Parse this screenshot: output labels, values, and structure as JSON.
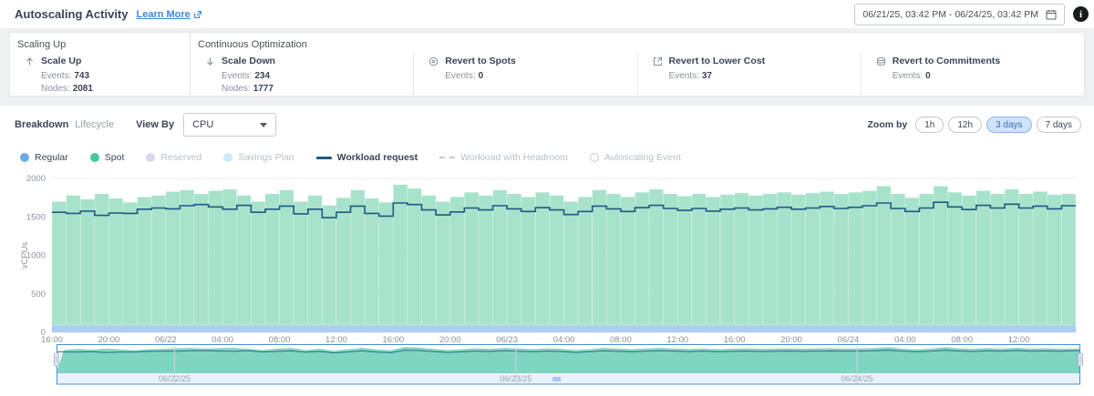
{
  "header": {
    "title": "Autoscaling Activity",
    "learn_more": "Learn More",
    "date_range": "06/21/25, 03:42 PM - 06/24/25, 03:42 PM"
  },
  "summary": {
    "groups": [
      {
        "label": "Scaling Up"
      },
      {
        "label": "Continuous Optimization"
      }
    ],
    "cards": [
      {
        "title": "Scale Up",
        "events_label": "Events:",
        "events": "743",
        "nodes_label": "Nodes:",
        "nodes": "2081"
      },
      {
        "title": "Scale Down",
        "events_label": "Events:",
        "events": "234",
        "nodes_label": "Nodes:",
        "nodes": "1777"
      },
      {
        "title": "Revert to Spots",
        "events_label": "Events:",
        "events": "0"
      },
      {
        "title": "Revert to Lower Cost",
        "events_label": "Events:",
        "events": "37"
      },
      {
        "title": "Revert to Commitments",
        "events_label": "Events:",
        "events": "0"
      }
    ]
  },
  "controls": {
    "tabs": [
      {
        "label": "Breakdown",
        "active": true
      },
      {
        "label": "Lifecycle",
        "active": false
      }
    ],
    "view_by_label": "View By",
    "view_by_value": "CPU",
    "zoom_by_label": "Zoom by",
    "zoom_options": [
      {
        "label": "1h",
        "active": false
      },
      {
        "label": "12h",
        "active": false
      },
      {
        "label": "3 days",
        "active": true
      },
      {
        "label": "7 days",
        "active": false
      }
    ]
  },
  "legend": {
    "items": [
      {
        "label": "Regular",
        "swatch": "dot",
        "color": "#6aa9e9",
        "active": true,
        "bold": false
      },
      {
        "label": "Spot",
        "swatch": "dot",
        "color": "#47c79c",
        "active": true,
        "bold": false
      },
      {
        "label": "Reserved",
        "swatch": "dot",
        "color": "#d9d6f0",
        "active": false,
        "bold": false
      },
      {
        "label": "Savings Plan",
        "swatch": "dot",
        "color": "#cdeaf6",
        "active": false,
        "bold": false
      },
      {
        "label": "Workload request",
        "swatch": "line",
        "color": "#1e5a84",
        "active": true,
        "bold": true
      },
      {
        "label": "Workload with Headroom",
        "swatch": "dashed-line",
        "color": "#c3c9d0",
        "active": false,
        "bold": false
      },
      {
        "label": "Autoscaling Event",
        "swatch": "hollow-dot",
        "color": "#c3c9d0",
        "active": false,
        "bold": false
      }
    ]
  },
  "chart_data": {
    "type": "area",
    "title": "Autoscaling activity over time (stacked step area of provisioned vCPUs by lifecycle, with workload request step line)",
    "y_label": "vCPUs",
    "ylim": [
      0,
      2000
    ],
    "y_ticks": [
      0,
      500,
      1000,
      1500,
      2000
    ],
    "total_hours": 72,
    "x_ticks": {
      "hours": [
        0,
        4,
        8,
        12,
        16,
        20,
        24,
        28,
        32,
        36,
        40,
        44,
        48,
        52,
        56,
        60,
        64,
        68
      ],
      "labels": [
        "16:00",
        "20:00",
        "06/22",
        "04:00",
        "08:00",
        "12:00",
        "16:00",
        "20:00",
        "06/23",
        "04:00",
        "08:00",
        "12:00",
        "16:00",
        "20:00",
        "06/24",
        "04:00",
        "08:00",
        "12:00"
      ]
    },
    "series": [
      {
        "name": "Regular",
        "type": "area",
        "color": "#abcdf4",
        "constant": 95
      },
      {
        "name": "Spot",
        "type": "area",
        "stacked_top": true,
        "color": "#a6e3ca",
        "values": [
          1700,
          1780,
          1730,
          1800,
          1740,
          1690,
          1760,
          1780,
          1830,
          1850,
          1800,
          1840,
          1860,
          1780,
          1700,
          1800,
          1850,
          1700,
          1780,
          1650,
          1750,
          1850,
          1740,
          1690,
          1920,
          1870,
          1780,
          1700,
          1760,
          1820,
          1780,
          1850,
          1800,
          1760,
          1820,
          1780,
          1700,
          1760,
          1850,
          1800,
          1760,
          1820,
          1860,
          1800,
          1770,
          1800,
          1760,
          1790,
          1810,
          1780,
          1800,
          1820,
          1790,
          1810,
          1830,
          1800,
          1820,
          1840,
          1900,
          1800,
          1750,
          1800,
          1900,
          1820,
          1780,
          1840,
          1800,
          1860,
          1800,
          1830,
          1790,
          1800
        ]
      },
      {
        "name": "Workload request",
        "type": "step-line",
        "color": "#1e5a84",
        "values": [
          1560,
          1545,
          1575,
          1520,
          1550,
          1545,
          1600,
          1615,
          1605,
          1645,
          1660,
          1630,
          1600,
          1650,
          1560,
          1600,
          1640,
          1540,
          1600,
          1490,
          1560,
          1640,
          1545,
          1510,
          1680,
          1660,
          1590,
          1525,
          1565,
          1615,
          1590,
          1645,
          1605,
          1570,
          1620,
          1590,
          1530,
          1570,
          1640,
          1605,
          1570,
          1620,
          1650,
          1610,
          1585,
          1610,
          1575,
          1600,
          1615,
          1590,
          1605,
          1625,
          1600,
          1615,
          1635,
          1610,
          1625,
          1645,
          1680,
          1610,
          1570,
          1615,
          1690,
          1630,
          1595,
          1650,
          1615,
          1665,
          1615,
          1640,
          1605,
          1645
        ]
      }
    ],
    "navigator": {
      "day_tick_hours": [
        8.3,
        32.3,
        56.3
      ],
      "day_labels": [
        "06/22/25",
        "06/23/25",
        "06/24/25"
      ],
      "area_color": "#7fd5bf",
      "line_color": "#2d6f85",
      "strip_color": "#e9f1fc",
      "selection_color": "#4a90d9"
    },
    "grid": true,
    "legend_position": "top"
  }
}
